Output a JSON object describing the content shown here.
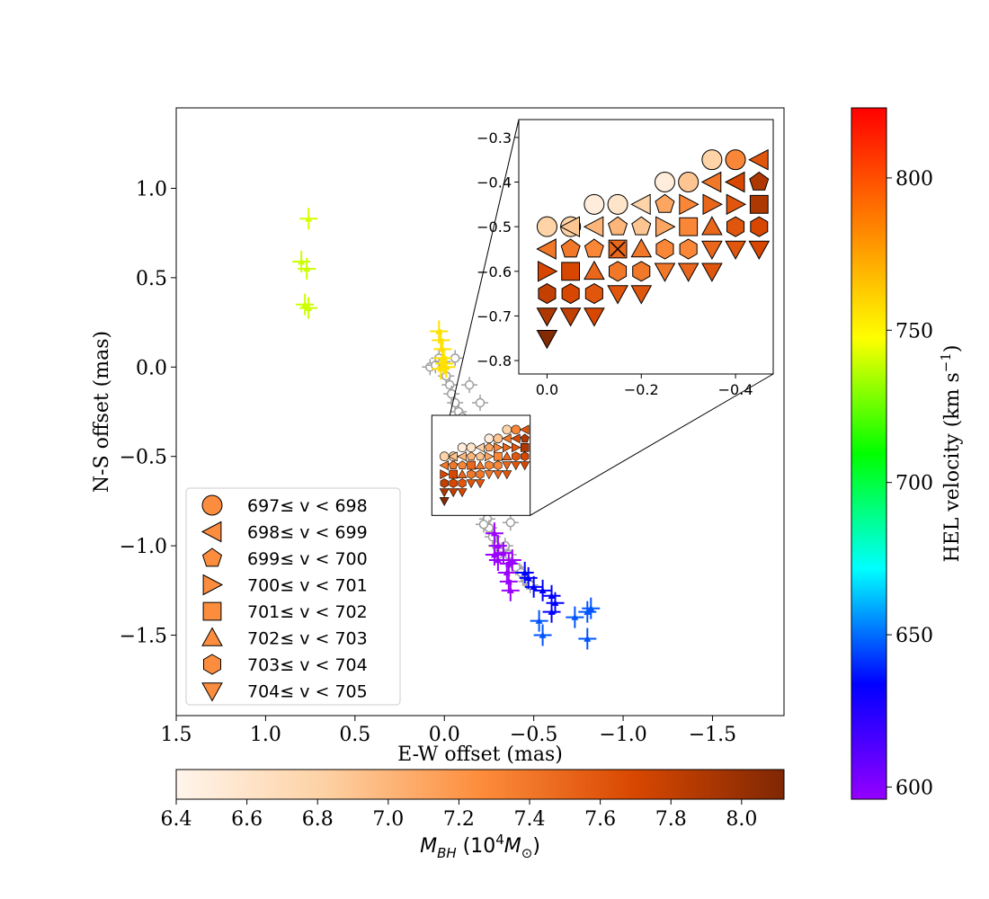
{
  "chart_data": [
    {
      "type": "scatter",
      "xlabel": "E-W offset (mas)",
      "ylabel": "N-S offset (mas)",
      "xlim": [
        1.5,
        -1.9
      ],
      "ylim": [
        -1.95,
        1.45
      ],
      "x_ticks": [
        1.5,
        1.0,
        0.5,
        0.0,
        -0.5,
        -1.0,
        -1.5
      ],
      "x_tick_labels": [
        "1.5",
        "1.0",
        "0.5",
        "0.0",
        "−0.5",
        "−1.0",
        "−1.5"
      ],
      "y_ticks": [
        1.0,
        0.5,
        0.0,
        -0.5,
        -1.0,
        -1.5
      ],
      "y_tick_labels": [
        "1.0",
        "0.5",
        "0.0",
        "−0.5",
        "−1.0",
        "−1.5"
      ],
      "legend_placement": "lower-left",
      "legend": [
        {
          "label": "697≤ v < 698",
          "marker": "circle"
        },
        {
          "label": "698≤ v < 699",
          "marker": "triangle-left"
        },
        {
          "label": "699≤ v < 700",
          "marker": "pentagon"
        },
        {
          "label": "700≤ v < 701",
          "marker": "triangle-right"
        },
        {
          "label": "701≤ v < 702",
          "marker": "square"
        },
        {
          "label": "702≤ v < 703",
          "marker": "triangle-up"
        },
        {
          "label": "703≤ v < 704",
          "marker": "hexagon"
        },
        {
          "label": "704≤ v < 705",
          "marker": "triangle-down"
        }
      ],
      "legend_color": "#fc8d3e",
      "series": [
        {
          "velocity_kms": 770,
          "color": "#ccff00",
          "points": [
            [
              0.8,
              0.59
            ],
            [
              0.77,
              0.55
            ],
            [
              0.78,
              0.35
            ],
            [
              0.76,
              0.33
            ]
          ]
        },
        {
          "velocity_kms": 772,
          "color": "#d8ff00",
          "points": [
            [
              0.76,
              0.83
            ]
          ]
        },
        {
          "velocity_kms": 790,
          "color": "#ffe000",
          "points": [
            [
              0.03,
              0.2
            ],
            [
              0.02,
              0.15
            ],
            [
              0.01,
              0.1
            ],
            [
              0.01,
              0.05
            ],
            [
              0.0,
              0.02
            ],
            [
              -0.01,
              0.0
            ],
            [
              0.02,
              -0.01
            ]
          ]
        },
        {
          "velocity_kms": 598,
          "color": "#9b00ff",
          "points": [
            [
              -0.28,
              -0.93
            ],
            [
              -0.3,
              -1.0
            ],
            [
              -0.33,
              -1.04
            ],
            [
              -0.28,
              -1.05
            ],
            [
              -0.3,
              -1.08
            ],
            [
              -0.36,
              -1.1
            ],
            [
              -0.35,
              -1.15
            ],
            [
              -0.38,
              -1.08
            ],
            [
              -0.36,
              -1.2
            ],
            [
              -0.37,
              -1.25
            ]
          ]
        },
        {
          "velocity_kms": 630,
          "color": "#0000ff",
          "points": [
            [
              -0.45,
              -1.15
            ],
            [
              -0.47,
              -1.18
            ],
            [
              -0.5,
              -1.23
            ],
            [
              -0.55,
              -1.25
            ],
            [
              -0.6,
              -1.28
            ],
            [
              -0.62,
              -1.32
            ],
            [
              -0.6,
              -1.37
            ]
          ]
        },
        {
          "velocity_kms": 650,
          "color": "#0055ff",
          "points": [
            [
              -0.53,
              -1.42
            ],
            [
              -0.55,
              -1.5
            ],
            [
              -0.73,
              -1.4
            ],
            [
              -0.8,
              -1.37
            ],
            [
              -0.82,
              -1.35
            ],
            [
              -0.8,
              -1.52
            ]
          ]
        }
      ],
      "gray_points": [
        [
          0.08,
          0.0
        ],
        [
          0.05,
          0.01
        ],
        [
          0.03,
          0.05
        ],
        [
          0.01,
          0.03
        ],
        [
          -0.01,
          -0.05
        ],
        [
          -0.03,
          -0.1
        ],
        [
          -0.04,
          -0.15
        ],
        [
          -0.06,
          -0.2
        ],
        [
          -0.08,
          -0.25
        ],
        [
          -0.1,
          -0.28
        ],
        [
          -0.1,
          -0.33
        ],
        [
          -0.14,
          -0.32
        ],
        [
          -0.16,
          -0.4
        ],
        [
          -0.2,
          -0.35
        ],
        [
          -0.22,
          -0.42
        ],
        [
          -0.26,
          -0.45
        ],
        [
          -0.2,
          -0.2
        ],
        [
          -0.14,
          -0.1
        ],
        [
          -0.06,
          0.05
        ],
        [
          -0.24,
          -0.85
        ],
        [
          -0.25,
          -0.9
        ],
        [
          -0.22,
          -0.88
        ],
        [
          -0.27,
          -0.95
        ],
        [
          -0.29,
          -1.0
        ],
        [
          -0.3,
          -1.05
        ],
        [
          -0.34,
          -1.0
        ],
        [
          -0.36,
          -1.05
        ],
        [
          -0.38,
          -1.1
        ],
        [
          -0.4,
          -1.12
        ],
        [
          -0.43,
          -1.15
        ],
        [
          -0.46,
          -1.2
        ],
        [
          -0.48,
          -1.22
        ],
        [
          -0.37,
          -0.87
        ]
      ],
      "inset_region": {
        "x": [
          0.07,
          -0.48
        ],
        "y": [
          -0.27,
          -0.83
        ]
      }
    },
    {
      "type": "scatter",
      "role": "inset",
      "xlim": [
        0.06,
        -0.48
      ],
      "ylim": [
        -0.83,
        -0.26
      ],
      "x_ticks": [
        0.0,
        -0.2,
        -0.4
      ],
      "x_tick_labels": [
        "0.0",
        "−0.2",
        "−0.4"
      ],
      "y_ticks": [
        -0.3,
        -0.4,
        -0.5,
        -0.6,
        -0.7,
        -0.8
      ],
      "y_tick_labels": [
        "−0.3",
        "−0.4",
        "−0.5",
        "−0.6",
        "−0.7",
        "−0.8"
      ],
      "points": [
        {
          "x": -0.35,
          "y": -0.35,
          "marker": "circle",
          "mass": 6.8
        },
        {
          "x": -0.4,
          "y": -0.35,
          "marker": "circle",
          "mass": 7.3
        },
        {
          "x": -0.45,
          "y": -0.35,
          "marker": "triangle-left",
          "mass": 7.6
        },
        {
          "x": -0.25,
          "y": -0.4,
          "marker": "circle",
          "mass": 6.5
        },
        {
          "x": -0.3,
          "y": -0.4,
          "marker": "circle",
          "mass": 6.9
        },
        {
          "x": -0.35,
          "y": -0.4,
          "marker": "triangle-left",
          "mass": 7.4
        },
        {
          "x": -0.4,
          "y": -0.4,
          "marker": "triangle-left",
          "mass": 7.7
        },
        {
          "x": -0.45,
          "y": -0.4,
          "marker": "pentagon",
          "mass": 7.9
        },
        {
          "x": -0.1,
          "y": -0.45,
          "marker": "circle",
          "mass": 6.5
        },
        {
          "x": -0.15,
          "y": -0.45,
          "marker": "circle",
          "mass": 6.6
        },
        {
          "x": -0.2,
          "y": -0.45,
          "marker": "triangle-left",
          "mass": 6.8
        },
        {
          "x": -0.25,
          "y": -0.45,
          "marker": "pentagon",
          "mass": 7.1
        },
        {
          "x": -0.3,
          "y": -0.45,
          "marker": "triangle-right",
          "mass": 7.3
        },
        {
          "x": -0.35,
          "y": -0.45,
          "marker": "triangle-right",
          "mass": 7.5
        },
        {
          "x": -0.4,
          "y": -0.45,
          "marker": "triangle-right",
          "mass": 7.6
        },
        {
          "x": -0.45,
          "y": -0.45,
          "marker": "square",
          "mass": 7.9
        },
        {
          "x": -0.05,
          "y": -0.5,
          "marker": "circle",
          "mass": 6.8
        },
        {
          "x": 0.0,
          "y": -0.5,
          "marker": "circle",
          "mass": 6.8
        },
        {
          "x": -0.05,
          "y": -0.5,
          "marker": "triangle-left",
          "mass": 6.9
        },
        {
          "x": -0.1,
          "y": -0.5,
          "marker": "triangle-left",
          "mass": 7.0
        },
        {
          "x": -0.15,
          "y": -0.5,
          "marker": "pentagon",
          "mass": 7.0
        },
        {
          "x": -0.2,
          "y": -0.5,
          "marker": "pentagon",
          "mass": 6.9
        },
        {
          "x": -0.25,
          "y": -0.5,
          "marker": "triangle-right",
          "mass": 7.1
        },
        {
          "x": -0.3,
          "y": -0.5,
          "marker": "square",
          "mass": 7.3
        },
        {
          "x": -0.35,
          "y": -0.5,
          "marker": "triangle-up",
          "mass": 7.5
        },
        {
          "x": -0.4,
          "y": -0.5,
          "marker": "hexagon",
          "mass": 7.6
        },
        {
          "x": -0.45,
          "y": -0.5,
          "marker": "hexagon",
          "mass": 7.7
        },
        {
          "x": 0.0,
          "y": -0.55,
          "marker": "triangle-left",
          "mass": 7.4
        },
        {
          "x": -0.05,
          "y": -0.55,
          "marker": "pentagon",
          "mass": 7.4
        },
        {
          "x": -0.1,
          "y": -0.55,
          "marker": "pentagon",
          "mass": 7.3
        },
        {
          "x": -0.15,
          "y": -0.55,
          "marker": "square",
          "mass": 7.5,
          "note": "x"
        },
        {
          "x": -0.2,
          "y": -0.55,
          "marker": "triangle-up",
          "mass": 7.4
        },
        {
          "x": -0.25,
          "y": -0.55,
          "marker": "hexagon",
          "mass": 7.3
        },
        {
          "x": -0.3,
          "y": -0.55,
          "marker": "hexagon",
          "mass": 7.3
        },
        {
          "x": -0.35,
          "y": -0.55,
          "marker": "triangle-down",
          "mass": 7.5
        },
        {
          "x": -0.4,
          "y": -0.55,
          "marker": "triangle-down",
          "mass": 7.6
        },
        {
          "x": -0.45,
          "y": -0.55,
          "marker": "triangle-down",
          "mass": 7.7
        },
        {
          "x": 0.0,
          "y": -0.6,
          "marker": "triangle-right",
          "mass": 7.7
        },
        {
          "x": -0.05,
          "y": -0.6,
          "marker": "square",
          "mass": 7.7
        },
        {
          "x": -0.1,
          "y": -0.6,
          "marker": "triangle-up",
          "mass": 7.5
        },
        {
          "x": -0.15,
          "y": -0.6,
          "marker": "hexagon",
          "mass": 7.4
        },
        {
          "x": -0.2,
          "y": -0.6,
          "marker": "hexagon",
          "mass": 7.4
        },
        {
          "x": -0.25,
          "y": -0.6,
          "marker": "triangle-down",
          "mass": 7.4
        },
        {
          "x": -0.3,
          "y": -0.6,
          "marker": "triangle-down",
          "mass": 7.5
        },
        {
          "x": -0.35,
          "y": -0.6,
          "marker": "triangle-down",
          "mass": 7.6
        },
        {
          "x": 0.0,
          "y": -0.65,
          "marker": "hexagon",
          "mass": 7.8
        },
        {
          "x": -0.05,
          "y": -0.65,
          "marker": "hexagon",
          "mass": 7.7
        },
        {
          "x": -0.1,
          "y": -0.65,
          "marker": "hexagon",
          "mass": 7.6
        },
        {
          "x": -0.15,
          "y": -0.65,
          "marker": "triangle-down",
          "mass": 7.6
        },
        {
          "x": -0.2,
          "y": -0.65,
          "marker": "triangle-down",
          "mass": 7.6
        },
        {
          "x": 0.0,
          "y": -0.7,
          "marker": "triangle-down",
          "mass": 7.9
        },
        {
          "x": -0.05,
          "y": -0.7,
          "marker": "triangle-down",
          "mass": 7.8
        },
        {
          "x": -0.1,
          "y": -0.7,
          "marker": "triangle-down",
          "mass": 7.7
        },
        {
          "x": 0.0,
          "y": -0.75,
          "marker": "triangle-down",
          "mass": 8.1
        }
      ]
    }
  ],
  "colorbars": {
    "mass": {
      "label": "M_BH (10^4 M_⊙)",
      "range": [
        6.4,
        8.12
      ],
      "ticks": [
        6.4,
        6.6,
        6.8,
        7.0,
        7.2,
        7.4,
        7.6,
        7.8,
        8.0
      ],
      "tick_labels": [
        "6.4",
        "6.6",
        "6.8",
        "7.0",
        "7.2",
        "7.4",
        "7.6",
        "7.8",
        "8.0"
      ],
      "colors": [
        "#fff5eb",
        "#fdd0a2",
        "#fd8d3c",
        "#d94801",
        "#7f2704"
      ]
    },
    "velocity": {
      "label": "HEL velocity (km s⁻¹)",
      "range": [
        596,
        823
      ],
      "ticks": [
        600,
        650,
        700,
        750,
        800
      ],
      "tick_labels": [
        "600",
        "650",
        "700",
        "750",
        "800"
      ],
      "colors": [
        "#9400ff",
        "#0000ff",
        "#00ffff",
        "#00ff00",
        "#ffff00",
        "#ff8000",
        "#ff0000"
      ]
    }
  }
}
